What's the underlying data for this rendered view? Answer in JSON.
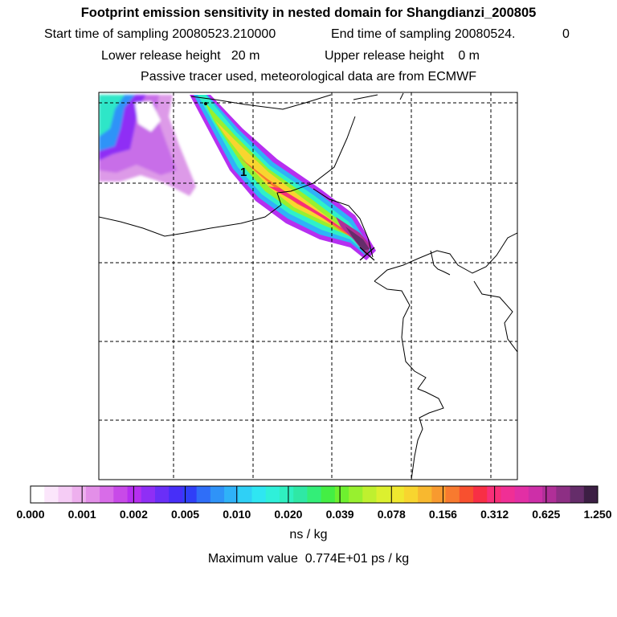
{
  "chart_data": {
    "type": "heatmap",
    "title": "Footprint emission sensitivity in nested domain for Shangdianzi_200805",
    "sampling": {
      "start_label": "Start time of sampling",
      "start_value": "20080523.210000",
      "end_label": "End time of sampling",
      "end_value": "20080524.",
      "end_suffix": "0"
    },
    "release": {
      "lower_label": "Lower release height",
      "lower_value": "20 m",
      "upper_label": "Upper release height",
      "upper_value": "0 m"
    },
    "subtitle": "Passive tracer used, meteorological data are from ECMWF",
    "map_label": "1",
    "colorbar": {
      "ticks": [
        "0.000",
        "0.001",
        "0.002",
        "0.005",
        "0.010",
        "0.020",
        "0.039",
        "0.078",
        "0.156",
        "0.312",
        "0.625",
        "1.250"
      ],
      "colors": [
        "#ffffff",
        "#fbe6fb",
        "#f5ccf5",
        "#eeb0ee",
        "#e38fe8",
        "#d86ce8",
        "#c84ae8",
        "#b62ff0",
        "#8f2ff5",
        "#6a2ff7",
        "#472ff8",
        "#2f3ff8",
        "#2f6ef8",
        "#2f93f8",
        "#2fb2f8",
        "#2fd0f6",
        "#2fe6f2",
        "#2ff0da",
        "#2ff0c0",
        "#2fe8a5",
        "#33ee78",
        "#44ee44",
        "#6ef02f",
        "#98f02f",
        "#bff02f",
        "#dcf02f",
        "#f0e82f",
        "#f8d52f",
        "#f8b82f",
        "#f89a2f",
        "#f87a2f",
        "#f8502f",
        "#f82f45",
        "#f82f78",
        "#f02f95",
        "#e22fa5",
        "#cd2fa8",
        "#b02f98",
        "#8d2f84",
        "#652d6a",
        "#3c1f44"
      ],
      "units": "ns / kg"
    },
    "max_value": "Maximum value  0.774E+01 ps / kg"
  }
}
